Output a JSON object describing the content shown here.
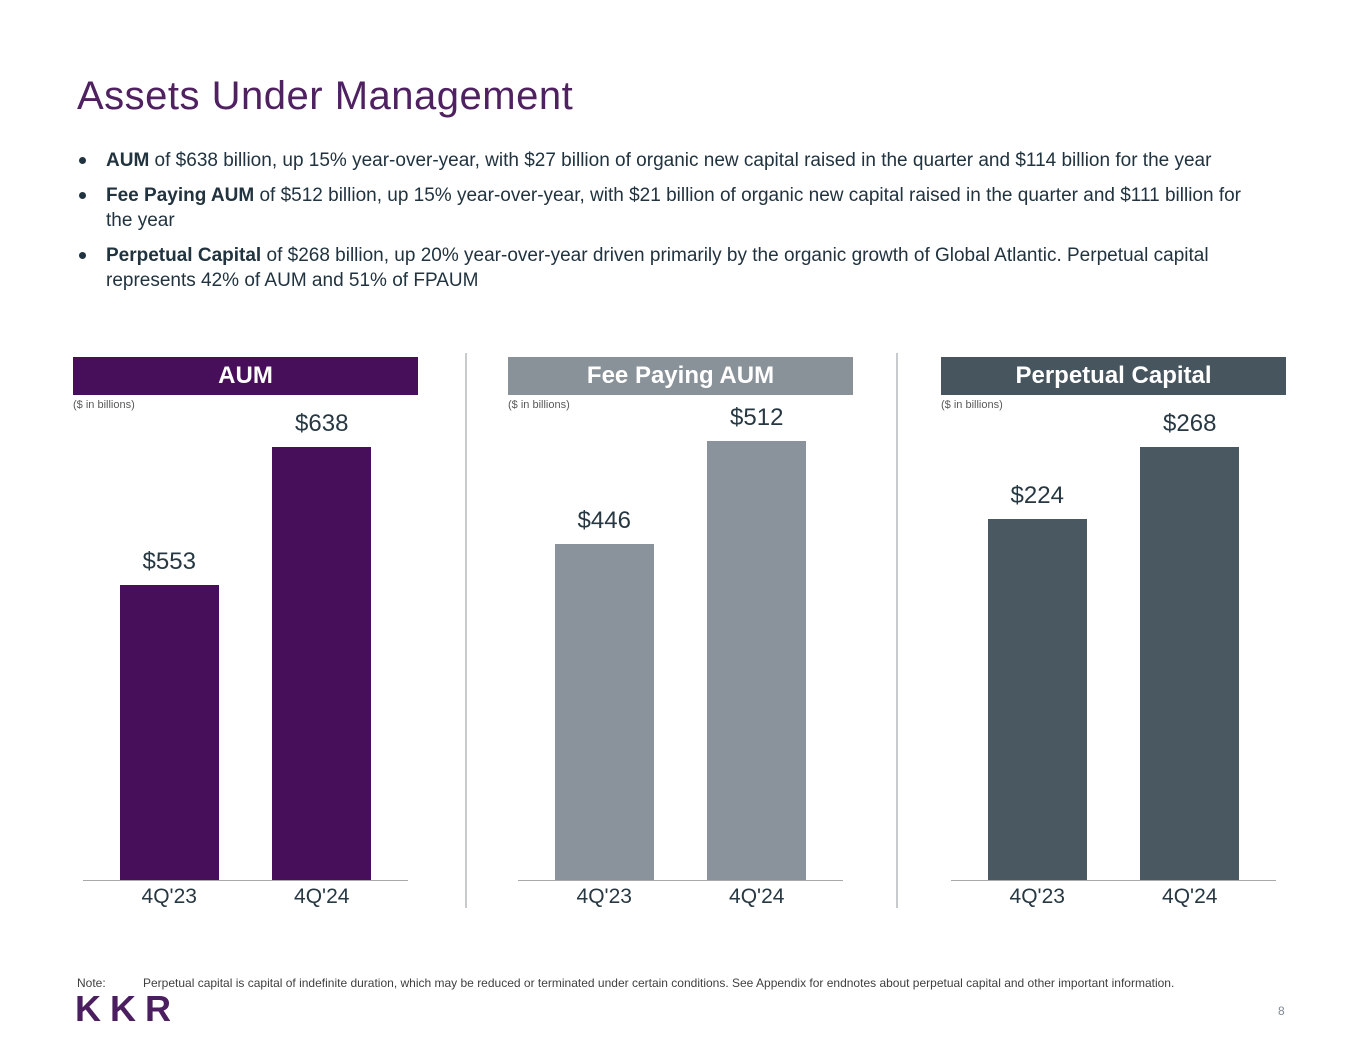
{
  "title": "Assets Under Management",
  "logo": "KKR",
  "page_number": "8",
  "note": {
    "label": "Note:",
    "text": "Perpetual capital is capital of indefinite duration, which may be reduced or terminated under certain conditions. See Appendix for endnotes about perpetual capital and other important information."
  },
  "bullets": [
    {
      "lead": "AUM",
      "rest": " of $638 billion, up 15% year-over-year, with $27 billion of organic new capital raised in the quarter and $114 billion for the year"
    },
    {
      "lead": "Fee Paying AUM",
      "rest": " of $512 billion, up 15% year-over-year, with $21 billion of organic new capital raised in the quarter and $111 billion for the year"
    },
    {
      "lead": "Perpetual Capital",
      "rest": " of $268 billion, up 20% year-over-year driven primarily by the organic growth of Global Atlantic. Perpetual capital represents 42% of AUM and 51% of FPAUM"
    }
  ],
  "colors": {
    "brand_purple": "#4F2160",
    "bar_purple": "#470E59",
    "bar_gray": "#8A939B",
    "bar_slate": "#4A5862",
    "text_dark": "#21333F",
    "divider": "#C7CBCE"
  },
  "chart_data": [
    {
      "type": "bar",
      "title": "AUM",
      "subtitle": "($ in billions)",
      "categories": [
        "4Q'23",
        "4Q'24"
      ],
      "values": [
        553,
        638
      ],
      "labels": [
        "$553",
        "$638"
      ],
      "bar_color": "#470E59",
      "ylim": [
        370,
        645
      ],
      "grid": false,
      "legend": "none"
    },
    {
      "type": "bar",
      "title": "Fee Paying AUM",
      "subtitle": "($ in billions)",
      "categories": [
        "4Q'23",
        "4Q'24"
      ],
      "values": [
        446,
        512
      ],
      "labels": [
        "$446",
        "$512"
      ],
      "bar_color": "#8A939B",
      "ylim": [
        230,
        515
      ],
      "grid": false,
      "legend": "none"
    },
    {
      "type": "bar",
      "title": "Perpetual Capital",
      "subtitle": "($ in billions)",
      "categories": [
        "4Q'23",
        "4Q'24"
      ],
      "values": [
        224,
        268
      ],
      "labels": [
        "$224",
        "$268"
      ],
      "bar_color": "#4A5862",
      "ylim": [
        0,
        275
      ],
      "grid": false,
      "legend": "none"
    }
  ]
}
